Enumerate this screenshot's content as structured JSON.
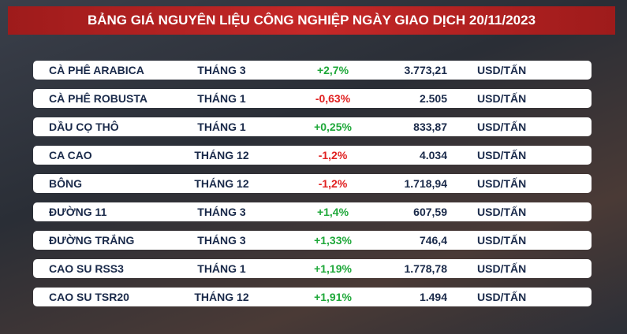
{
  "header": {
    "title": "BẢNG GIÁ NGUYÊN LIỆU CÔNG NGHIỆP NGÀY GIAO DỊCH 20/11/2023"
  },
  "table": {
    "rows": [
      [
        "CÀ PHÊ ARABICA",
        "THÁNG 3",
        "+2,7%",
        "3.773,21",
        "USD/TẤN"
      ],
      [
        "CÀ PHÊ ROBUSTA",
        "THÁNG 1",
        "-0,63%",
        "2.505",
        "USD/TẤN"
      ],
      [
        "DẦU CỌ THÔ",
        "THÁNG 1",
        "+0,25%",
        "833,87",
        "USD/TẤN"
      ],
      [
        "CA CAO",
        "THÁNG 12",
        "-1,2%",
        "4.034",
        "USD/TẤN"
      ],
      [
        "BÔNG",
        "THÁNG 12",
        "-1,2%",
        "1.718,94",
        "USD/TẤN"
      ],
      [
        "ĐƯỜNG 11",
        "THÁNG 3",
        "+1,4%",
        "607,59",
        "USD/TẤN"
      ],
      [
        "ĐƯỜNG TRẮNG",
        "THÁNG 3",
        "+1,33%",
        "746,4",
        "USD/TẤN"
      ],
      [
        "CAO SU RSS3",
        "THÁNG 1",
        "+1,19%",
        "1.778,78",
        "USD/TẤN"
      ],
      [
        "CAO SU TSR20",
        "THÁNG 12",
        "+1,91%",
        "1.494",
        "USD/TẤN"
      ]
    ]
  }
}
